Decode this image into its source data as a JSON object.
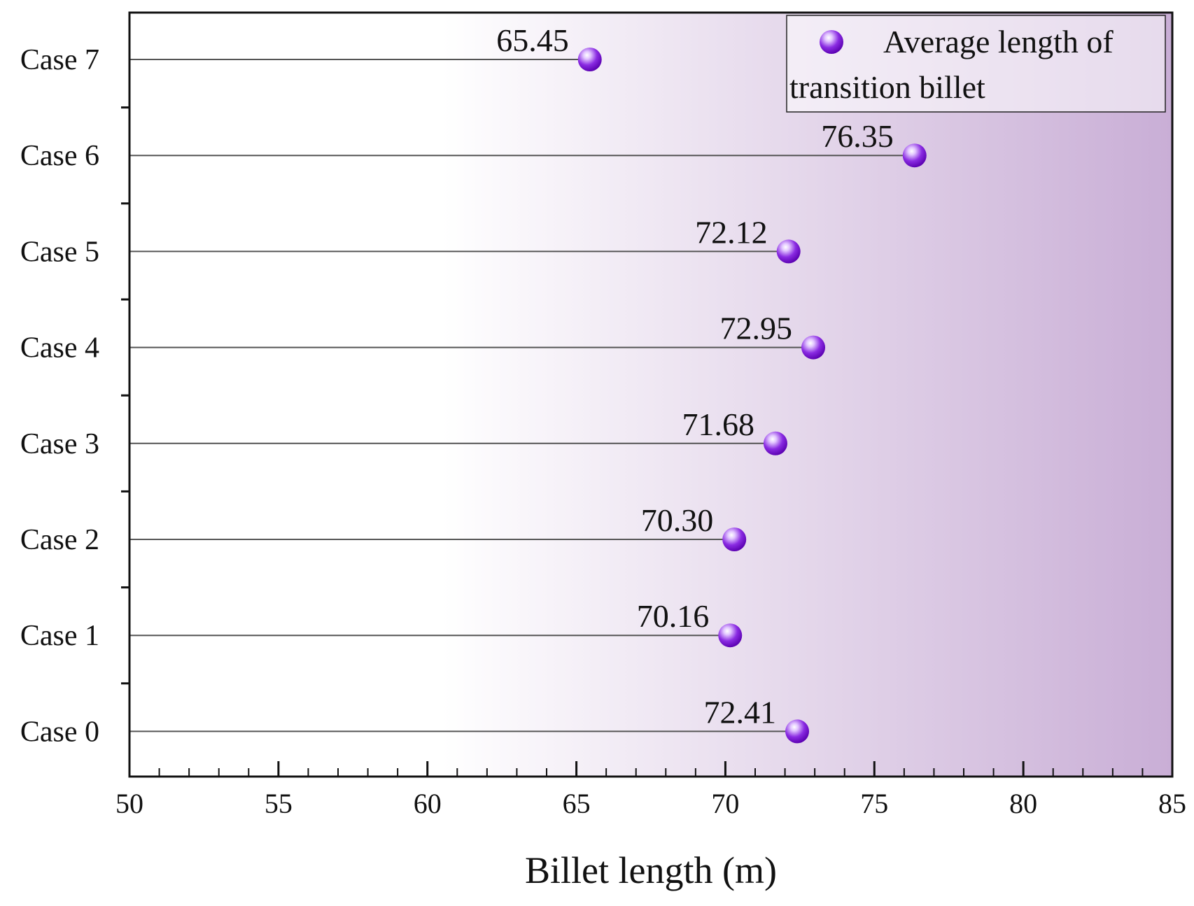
{
  "chart_data": {
    "type": "scatter",
    "orientation": "horizontal-lollipop",
    "title": "",
    "xlabel": "Billet length (m)",
    "ylabel": "",
    "xlim": [
      50,
      85
    ],
    "x_major_ticks": [
      50,
      55,
      60,
      65,
      70,
      75,
      80,
      85
    ],
    "x_tick_labels": [
      "50",
      "55",
      "60",
      "65",
      "70",
      "75",
      "80",
      "85"
    ],
    "categories": [
      "Case 0",
      "Case 1",
      "Case 2",
      "Case 3",
      "Case 4",
      "Case 5",
      "Case 6",
      "Case 7"
    ],
    "series": [
      {
        "name": "Average length of transition billet",
        "values": [
          72.41,
          70.16,
          70.3,
          71.68,
          72.95,
          72.12,
          76.35,
          65.45
        ],
        "labels": [
          "72.41",
          "70.16",
          "70.30",
          "71.68",
          "72.95",
          "72.12",
          "76.35",
          "65.45"
        ]
      }
    ],
    "legend": {
      "lines": [
        "Average length of",
        "transition billet"
      ],
      "position": "top-right"
    },
    "grid": false,
    "colors": {
      "marker": "#8a2be2",
      "marker_dark": "#5a00b0",
      "background_start": "#ffffff",
      "background_end": "#c9aed6",
      "line": "#555555",
      "axis": "#111111"
    }
  }
}
